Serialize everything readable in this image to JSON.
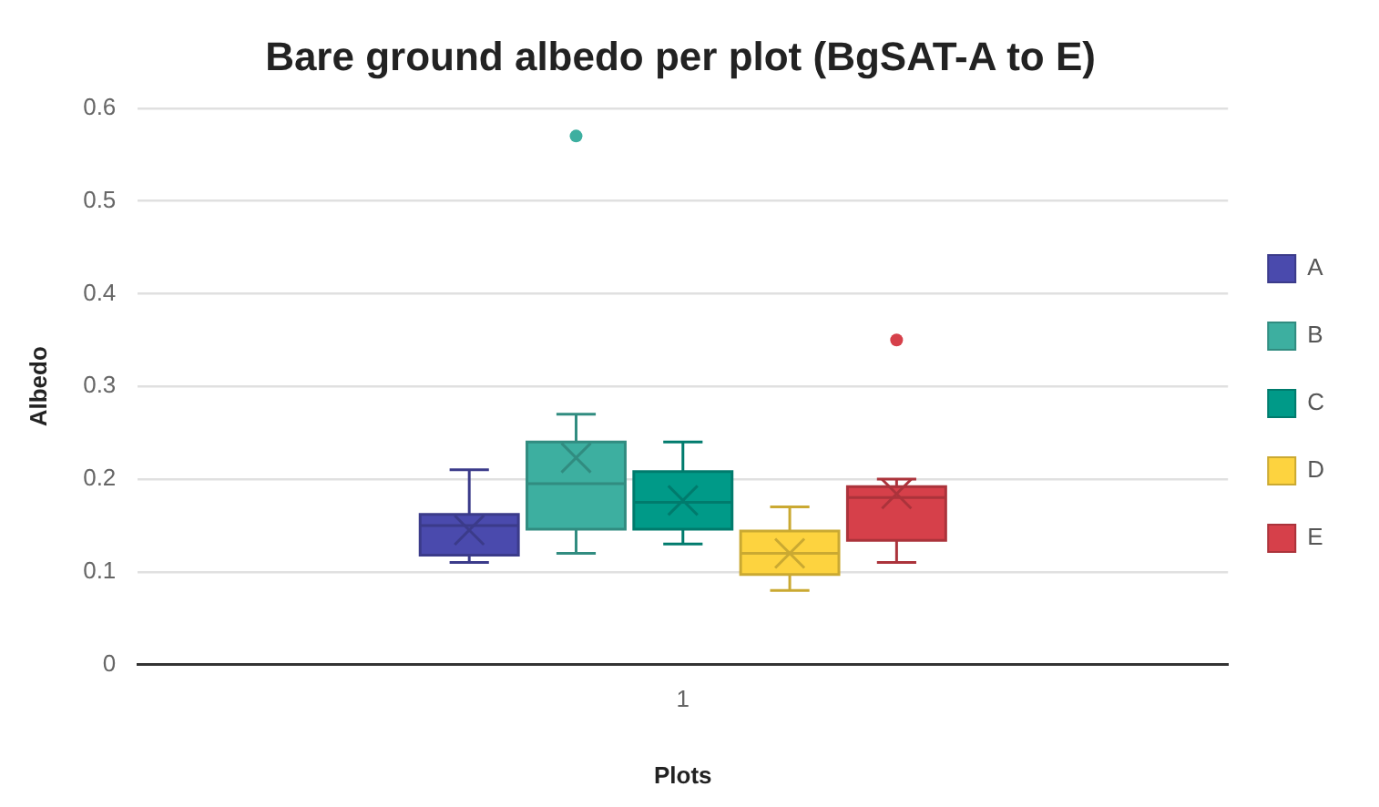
{
  "chart_data": {
    "type": "box",
    "title": "Bare ground albedo per plot (BgSAT-A to E)",
    "xlabel": "Plots",
    "ylabel": "Albedo",
    "categories": [
      "1"
    ],
    "series": [
      {
        "name": "A",
        "color": "#4a4aad",
        "boxes": [
          {
            "low": 0.11,
            "q1": 0.118,
            "median": 0.15,
            "q3": 0.162,
            "high": 0.21,
            "mean": 0.145
          }
        ]
      },
      {
        "name": "B",
        "color": "#3dafa0",
        "boxes": [
          {
            "low": 0.12,
            "q1": 0.146,
            "median": 0.195,
            "q3": 0.24,
            "high": 0.27,
            "mean": 0.223,
            "outliers": [
              0.57
            ]
          }
        ]
      },
      {
        "name": "C",
        "color": "#009a88",
        "boxes": [
          {
            "low": 0.13,
            "q1": 0.146,
            "median": 0.175,
            "q3": 0.208,
            "high": 0.24,
            "mean": 0.177
          }
        ]
      },
      {
        "name": "D",
        "color": "#fdd33f",
        "boxes": [
          {
            "low": 0.08,
            "q1": 0.097,
            "median": 0.12,
            "q3": 0.144,
            "high": 0.17,
            "mean": 0.12
          }
        ]
      },
      {
        "name": "E",
        "color": "#d6404a",
        "boxes": [
          {
            "low": 0.11,
            "q1": 0.134,
            "median": 0.18,
            "q3": 0.192,
            "high": 0.2,
            "mean": 0.184,
            "outliers": [
              0.35
            ]
          }
        ]
      }
    ],
    "ylim": [
      0,
      0.6
    ],
    "yticks": [
      0,
      0.1,
      0.2,
      0.3,
      0.4,
      0.5,
      0.6
    ],
    "grid": "y",
    "legend": "right"
  }
}
